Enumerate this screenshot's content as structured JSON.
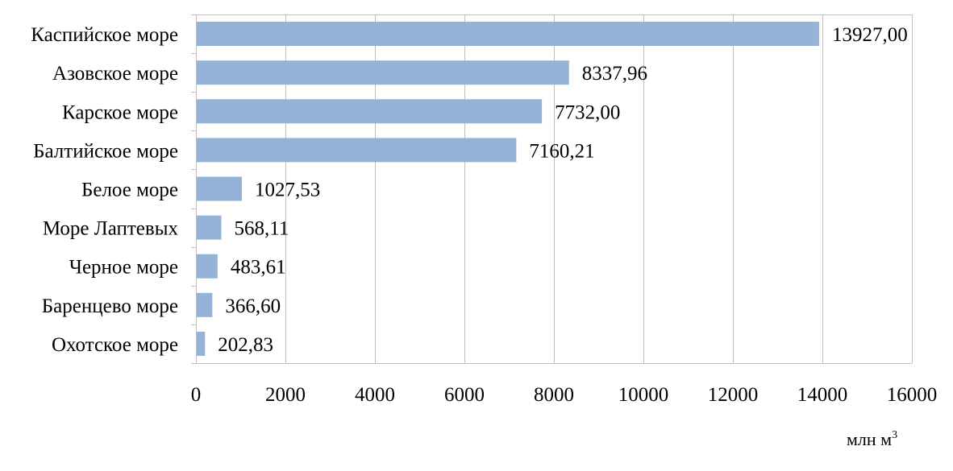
{
  "chart_data": {
    "type": "bar",
    "orientation": "horizontal",
    "categories": [
      "Каспийское море",
      "Азовское море",
      "Карское море",
      "Балтийское море",
      "Белое море",
      "Море Лаптевых",
      "Черное море",
      "Баренцево море",
      "Охотское море"
    ],
    "values": [
      13927.0,
      8337.96,
      7732.0,
      7160.21,
      1027.53,
      568.11,
      483.61,
      366.6,
      202.83
    ],
    "data_labels": [
      "13927,00",
      "8337,96",
      "7732,00",
      "7160,21",
      "1027,53",
      "568,11",
      "483,61",
      "366,60",
      "202,83"
    ],
    "x_ticks": [
      0,
      2000,
      4000,
      6000,
      8000,
      10000,
      12000,
      14000,
      16000
    ],
    "xlim": [
      0,
      16000
    ],
    "xlabel": "млн м",
    "xlabel_sup": "3",
    "ylabel": "",
    "title": "",
    "grid": true,
    "legend": "none",
    "bar_color": "#95B3D7",
    "grid_color": "#BFBFBF"
  }
}
